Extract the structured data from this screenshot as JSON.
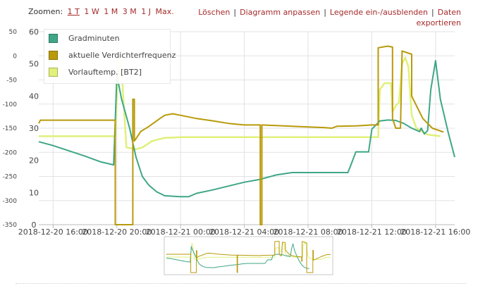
{
  "toolbar": {
    "zoom_label": "Zoomen:",
    "zoom_options": [
      "1 T",
      "1 W",
      "1 M",
      "3 M",
      "1 J",
      "Max."
    ],
    "zoom_active": 0,
    "actions": [
      "Löschen",
      "Diagramm anpassen",
      "Legende ein-/ausblenden",
      "Daten exportieren"
    ]
  },
  "colors": {
    "gradminuten": "#3fa687",
    "verdichter": "#b89a0a",
    "vorlauf": "#e0f07a",
    "grid": "#e2e2e2",
    "axis_text": "#444444",
    "navigator_border": "#c8c8c8"
  },
  "chart_data": {
    "type": "line",
    "x_tick_labels": [
      "2018-12-20 16:00",
      "2018-12-20 20:00",
      "2018-12-21 00:00",
      "2018-12-21 04:00",
      "2018-12-21 08:00",
      "2018-12-21 12:00",
      "2018-12-21 16:00"
    ],
    "x_range_hours": [
      -0.9,
      25.2
    ],
    "left_axis": {
      "ticks": [
        "50",
        "0",
        "-50",
        "-100",
        "-150",
        "-200",
        "-250",
        "-300",
        "-350"
      ],
      "range": [
        -350,
        50
      ]
    },
    "right_axis": {
      "ticks": [
        "60",
        "50",
        "40",
        "30",
        "20",
        "10",
        "0"
      ],
      "range": [
        0,
        60
      ]
    },
    "legend_position": "top-left",
    "series": [
      {
        "name": "Gradminuten",
        "axis": "left",
        "points": [
          [
            -0.9,
            -178
          ],
          [
            0,
            -186
          ],
          [
            1,
            -197
          ],
          [
            2,
            -208
          ],
          [
            3,
            -220
          ],
          [
            3.8,
            -226
          ],
          [
            4,
            -40
          ],
          [
            4.3,
            -90
          ],
          [
            4.8,
            -150
          ],
          [
            5.2,
            -210
          ],
          [
            5.6,
            -250
          ],
          [
            6,
            -268
          ],
          [
            6.5,
            -282
          ],
          [
            7,
            -290
          ],
          [
            8,
            -292
          ],
          [
            8.5,
            -292
          ],
          [
            9,
            -285
          ],
          [
            10,
            -278
          ],
          [
            11,
            -270
          ],
          [
            12,
            -262
          ],
          [
            13,
            -256
          ],
          [
            14,
            -247
          ],
          [
            15,
            -242
          ],
          [
            16,
            -242
          ],
          [
            17,
            -242
          ],
          [
            18,
            -242
          ],
          [
            18.5,
            -242
          ],
          [
            18.7,
            -225
          ],
          [
            19,
            -199
          ],
          [
            19.8,
            -199
          ],
          [
            20,
            -152
          ],
          [
            20.5,
            -135
          ],
          [
            21,
            -133
          ],
          [
            21.5,
            -134
          ],
          [
            22,
            -140
          ],
          [
            22.5,
            -150
          ],
          [
            23,
            -157
          ],
          [
            23.1,
            -150
          ],
          [
            23.3,
            -162
          ],
          [
            23.5,
            -155
          ],
          [
            23.7,
            -70
          ],
          [
            24,
            -10
          ],
          [
            24.3,
            -90
          ],
          [
            24.8,
            -160
          ],
          [
            25.2,
            -210
          ],
          [
            25.8,
            -265
          ],
          [
            26.3,
            -290
          ],
          [
            26.8,
            -300
          ],
          [
            27.2,
            -304
          ]
        ]
      },
      {
        "name": "aktuelle Verdichterfrequenz",
        "axis": "right",
        "points": [
          [
            -0.9,
            31.5
          ],
          [
            -0.8,
            32.5
          ],
          [
            3.9,
            32.5
          ],
          [
            3.9,
            0
          ],
          [
            5,
            0
          ],
          [
            5,
            39
          ],
          [
            5.1,
            39
          ],
          [
            5.1,
            26
          ],
          [
            5.3,
            27.5
          ],
          [
            5.5,
            29
          ],
          [
            6,
            30.5
          ],
          [
            6.7,
            33
          ],
          [
            7,
            34
          ],
          [
            7.5,
            34.5
          ],
          [
            8,
            34
          ],
          [
            9,
            33
          ],
          [
            10,
            32.3
          ],
          [
            11,
            31.5
          ],
          [
            12,
            31
          ],
          [
            13,
            31
          ],
          [
            13,
            0
          ],
          [
            13.1,
            0
          ],
          [
            13.1,
            31
          ],
          [
            14,
            30.8
          ],
          [
            15,
            30.6
          ],
          [
            16,
            30.4
          ],
          [
            17,
            30.2
          ],
          [
            17.5,
            30
          ],
          [
            17.8,
            30.6
          ],
          [
            19,
            30.7
          ],
          [
            20,
            31
          ],
          [
            20.4,
            31
          ],
          [
            20.4,
            55
          ],
          [
            21,
            55.5
          ],
          [
            21.3,
            55.2
          ],
          [
            21.3,
            33
          ],
          [
            21.5,
            30
          ],
          [
            21.8,
            30
          ],
          [
            21.9,
            54
          ],
          [
            22.5,
            53
          ],
          [
            22.5,
            40
          ],
          [
            22.8,
            37
          ],
          [
            23.2,
            33
          ],
          [
            23.8,
            30
          ],
          [
            24.5,
            28.8
          ],
          [
            25.5,
            28
          ],
          [
            25.7,
            27.5
          ],
          [
            25.7,
            20
          ],
          [
            25.8,
            20
          ],
          [
            25.8,
            55
          ],
          [
            26.3,
            54
          ],
          [
            26.7,
            52.5
          ],
          [
            26.7,
            0
          ],
          [
            27.9,
            0
          ],
          [
            27.9,
            39.5
          ],
          [
            28,
            39.5
          ],
          [
            28,
            22
          ],
          [
            28.5,
            24
          ],
          [
            29,
            26
          ],
          [
            29.5,
            28
          ],
          [
            30,
            30
          ],
          [
            30.5,
            31.5
          ],
          [
            31,
            32.3
          ],
          [
            31.4,
            32
          ]
        ]
      },
      {
        "name": "Vorlauftemp. [BT2]",
        "axis": "right",
        "points": [
          [
            -0.9,
            27.5
          ],
          [
            3.9,
            27.5
          ],
          [
            4.1,
            52
          ],
          [
            4.3,
            48
          ],
          [
            4.6,
            24
          ],
          [
            5.2,
            23.5
          ],
          [
            5.6,
            24
          ],
          [
            6.2,
            26
          ],
          [
            7,
            27
          ],
          [
            8,
            27.2
          ],
          [
            10,
            27.2
          ],
          [
            12,
            27.2
          ],
          [
            14,
            27.2
          ],
          [
            16,
            27.2
          ],
          [
            18,
            27.2
          ],
          [
            19,
            27.2
          ],
          [
            20.4,
            27.2
          ],
          [
            20.5,
            42
          ],
          [
            20.8,
            44
          ],
          [
            21.2,
            44
          ],
          [
            21.3,
            35
          ],
          [
            21.5,
            37
          ],
          [
            21.7,
            38
          ],
          [
            21.9,
            50
          ],
          [
            22.1,
            52
          ],
          [
            22.3,
            49
          ],
          [
            22.5,
            34
          ],
          [
            22.8,
            30
          ],
          [
            23.5,
            28
          ],
          [
            24.3,
            27.5
          ],
          [
            25.4,
            27.2
          ],
          [
            25.9,
            27.2
          ],
          [
            26,
            48
          ],
          [
            26.3,
            53
          ],
          [
            26.5,
            52
          ],
          [
            26.7,
            48
          ],
          [
            26.9,
            30
          ],
          [
            27.3,
            25
          ],
          [
            27.8,
            23.5
          ],
          [
            28.5,
            23.2
          ],
          [
            29.5,
            23.3
          ],
          [
            30.5,
            27
          ],
          [
            31.4,
            27.2
          ]
        ]
      }
    ]
  }
}
